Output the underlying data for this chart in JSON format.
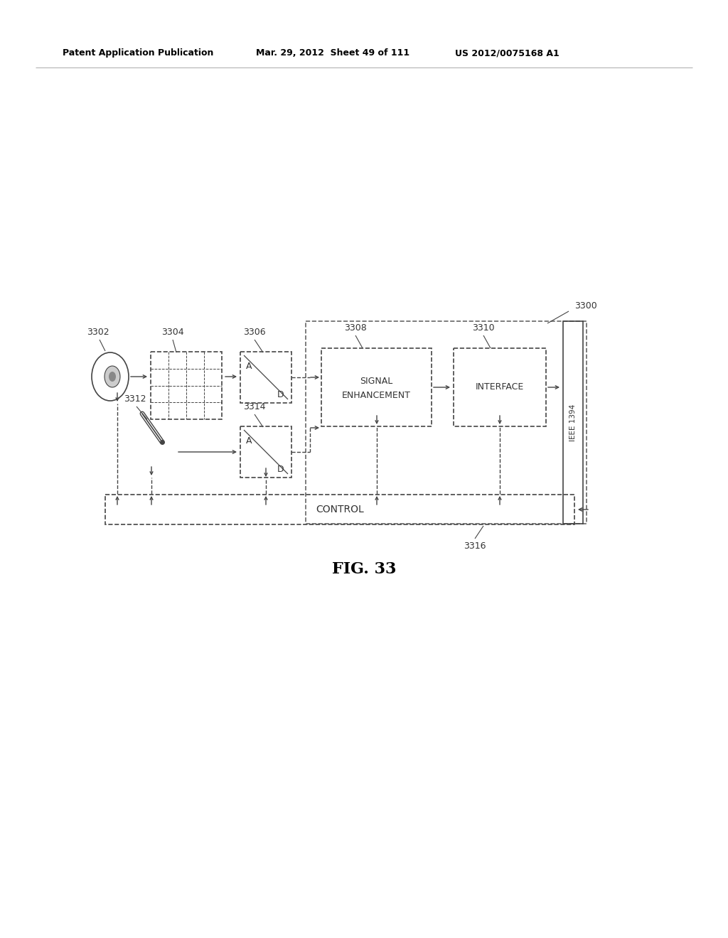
{
  "title": "FIG. 33",
  "header_left": "Patent Application Publication",
  "header_mid": "Mar. 29, 2012  Sheet 49 of 111",
  "header_right": "US 2012/0075168 A1",
  "bg_color": "#ffffff",
  "line_color": "#444444",
  "text_color": "#333333",
  "fig_width": 10.24,
  "fig_height": 13.2,
  "dpi": 100
}
